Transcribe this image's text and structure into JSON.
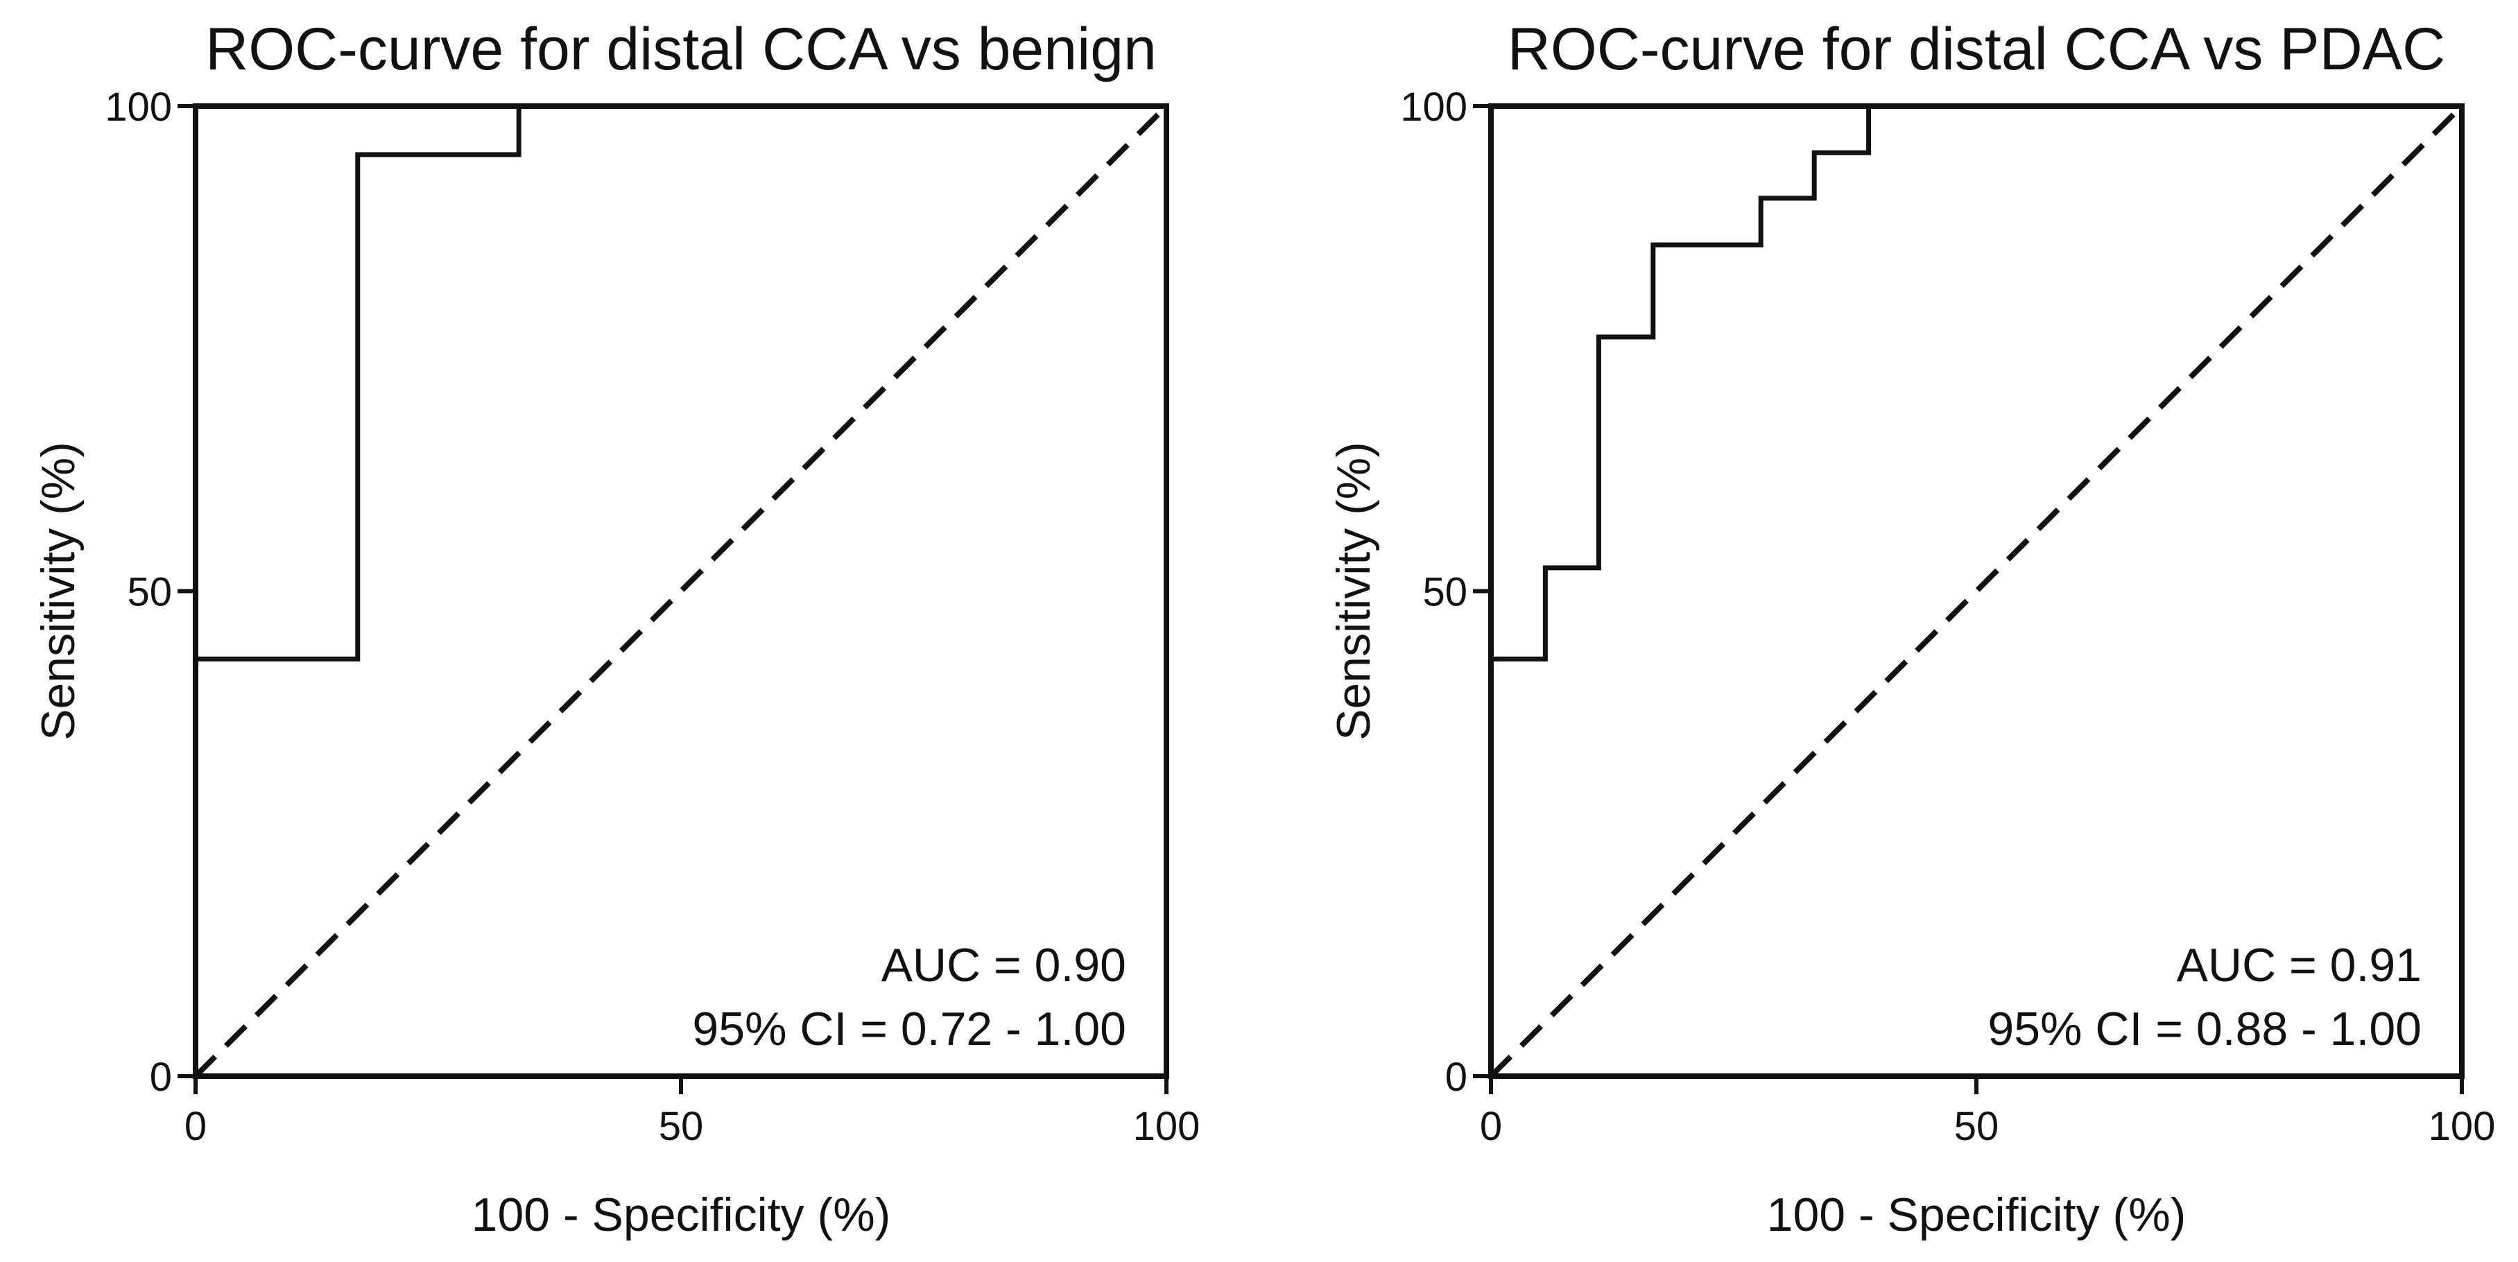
{
  "chart_data": [
    {
      "type": "line",
      "title": "ROC-curve for distal CCA vs benign",
      "xlabel": "100 - Specificity (%)",
      "ylabel": "Sensitivity (%)",
      "xlim": [
        0,
        100
      ],
      "ylim": [
        0,
        100
      ],
      "xticks": [
        "0",
        "50",
        "100"
      ],
      "yticks": [
        "0",
        "50",
        "100"
      ],
      "series": [
        {
          "name": "ROC curve",
          "style": "step",
          "x": [
            0,
            16.7,
            16.7,
            33.3,
            33.3,
            100
          ],
          "y": [
            43,
            43,
            95,
            95,
            100,
            100
          ]
        },
        {
          "name": "Reference line",
          "style": "dashed",
          "x": [
            0,
            100
          ],
          "y": [
            0,
            100
          ]
        }
      ],
      "annotations": [
        "AUC = 0.90",
        "95% CI = 0.72 - 1.00"
      ]
    },
    {
      "type": "line",
      "title": "ROC-curve for distal CCA vs PDAC",
      "xlabel": "100 - Specificity (%)",
      "ylabel": "Sensitivity (%)",
      "xlim": [
        0,
        100
      ],
      "ylim": [
        0,
        100
      ],
      "xticks": [
        "0",
        "50",
        "100"
      ],
      "yticks": [
        "0",
        "50",
        "100"
      ],
      "series": [
        {
          "name": "ROC curve",
          "style": "step",
          "x": [
            0,
            5.6,
            5.6,
            11.1,
            11.1,
            16.7,
            16.7,
            27.8,
            27.8,
            33.3,
            33.3,
            38.9,
            38.9,
            100
          ],
          "y": [
            43,
            43,
            52.4,
            52.4,
            76.2,
            76.2,
            85.7,
            85.7,
            90.5,
            90.5,
            95.2,
            95.2,
            100,
            100
          ]
        },
        {
          "name": "Reference line",
          "style": "dashed",
          "x": [
            0,
            100
          ],
          "y": [
            0,
            100
          ]
        }
      ],
      "annotations": [
        "AUC = 0.91",
        "95% CI = 0.88 - 1.00"
      ]
    }
  ]
}
